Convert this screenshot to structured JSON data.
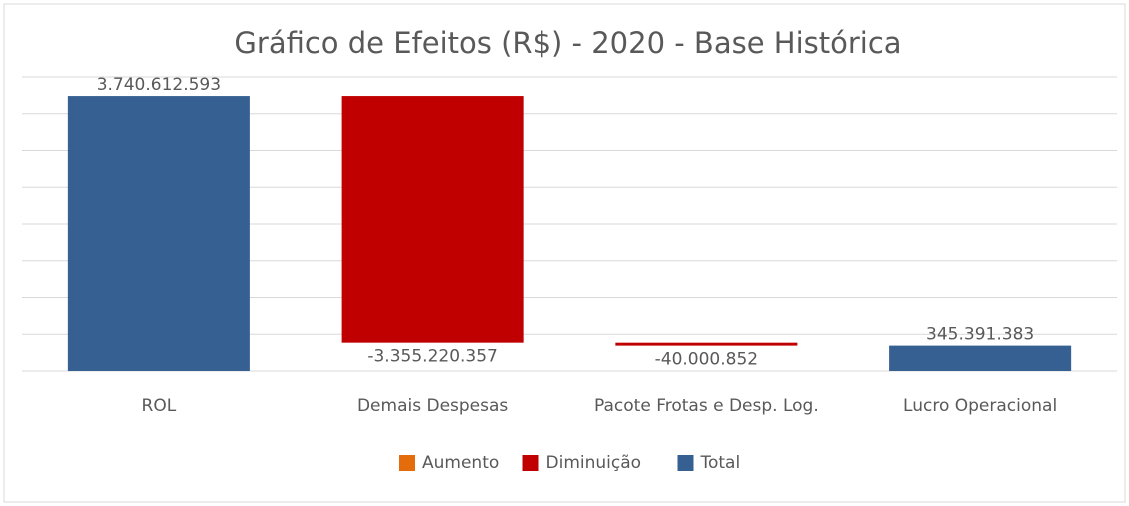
{
  "chart_data": {
    "type": "waterfall",
    "title": "Gráfico de Efeitos (R$) - 2020 - Base Histórica",
    "categories": [
      "ROL",
      "Demais Despesas",
      "Pacote Frotas e Desp. Log.",
      "Lucro Operacional"
    ],
    "series": [
      {
        "name": "Aumento",
        "color": "#e46c0a",
        "values": [
          null,
          null,
          null,
          null
        ]
      },
      {
        "name": "Diminuição",
        "color": "#c00000",
        "values": [
          null,
          -3355220357,
          -40000852,
          null
        ],
        "value_labels": [
          null,
          "-3.355.220.357",
          "-40.000.852",
          null
        ]
      },
      {
        "name": "Total",
        "color": "#376092",
        "values": [
          3740612593,
          null,
          null,
          345391383
        ],
        "value_labels": [
          "3.740.612.593",
          null,
          null,
          "345.391.383"
        ]
      }
    ],
    "ylim": [
      0,
      4000000000
    ],
    "yticks": [
      0,
      500000000,
      1000000000,
      1500000000,
      2000000000,
      2500000000,
      3000000000,
      3500000000,
      4000000000
    ],
    "grid": true,
    "legend": "bottom"
  }
}
